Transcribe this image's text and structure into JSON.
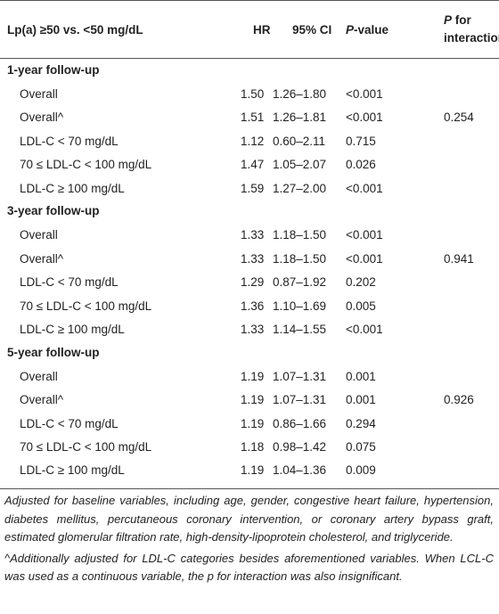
{
  "table": {
    "columns": [
      "Lp(a) ≥50 vs. <50 mg/dL",
      "HR",
      "95% CI",
      [
        "P",
        "-value"
      ],
      [
        "P",
        " for interaction"
      ]
    ],
    "sections": [
      {
        "title": "1-year follow-up",
        "interaction": "0.254",
        "rows": [
          [
            "Overall",
            "1.50",
            "1.26–1.80",
            "<0.001"
          ],
          [
            "Overall^",
            "1.51",
            "1.26–1.81",
            "<0.001"
          ],
          [
            "LDL-C < 70 mg/dL",
            "1.12",
            "0.60–2.11",
            "0.715"
          ],
          [
            "70 ≤ LDL-C < 100 mg/dL",
            "1.47",
            "1.05–2.07",
            "0.026"
          ],
          [
            "LDL-C ≥ 100 mg/dL",
            "1.59",
            "1.27–2.00",
            "<0.001"
          ]
        ]
      },
      {
        "title": "3-year follow-up",
        "interaction": "0.941",
        "rows": [
          [
            "Overall",
            "1.33",
            "1.18–1.50",
            "<0.001"
          ],
          [
            "Overall^",
            "1.33",
            "1.18–1.50",
            "<0.001"
          ],
          [
            "LDL-C < 70 mg/dL",
            "1.29",
            "0.87–1.92",
            "0.202"
          ],
          [
            "70 ≤ LDL-C < 100 mg/dL",
            "1.36",
            "1.10–1.69",
            "0.005"
          ],
          [
            "LDL-C ≥ 100 mg/dL",
            "1.33",
            "1.14–1.55",
            "<0.001"
          ]
        ]
      },
      {
        "title": "5-year follow-up",
        "interaction": "0.926",
        "rows": [
          [
            "Overall",
            "1.19",
            "1.07–1.31",
            "0.001"
          ],
          [
            "Overall^",
            "1.19",
            "1.07–1.31",
            "0.001"
          ],
          [
            "LDL-C < 70 mg/dL",
            "1.19",
            "0.86–1.66",
            "0.294"
          ],
          [
            "70 ≤ LDL-C < 100 mg/dL",
            "1.18",
            "0.98–1.42",
            "0.075"
          ],
          [
            "LDL-C ≥ 100 mg/dL",
            "1.19",
            "1.04–1.36",
            "0.009"
          ]
        ]
      }
    ],
    "footnotes": [
      "Adjusted for baseline variables, including age, gender, congestive heart failure, hypertension, diabetes mellitus, percutaneous coronary intervention, or coronary artery bypass graft, estimated glomerular filtration rate, high-density-lipoprotein cholesterol, and triglyceride.",
      "^Additionally adjusted for LDL-C categories besides aforementioned variables. When LCL-C was used as a continuous variable, the p for interaction was also insignificant."
    ]
  }
}
